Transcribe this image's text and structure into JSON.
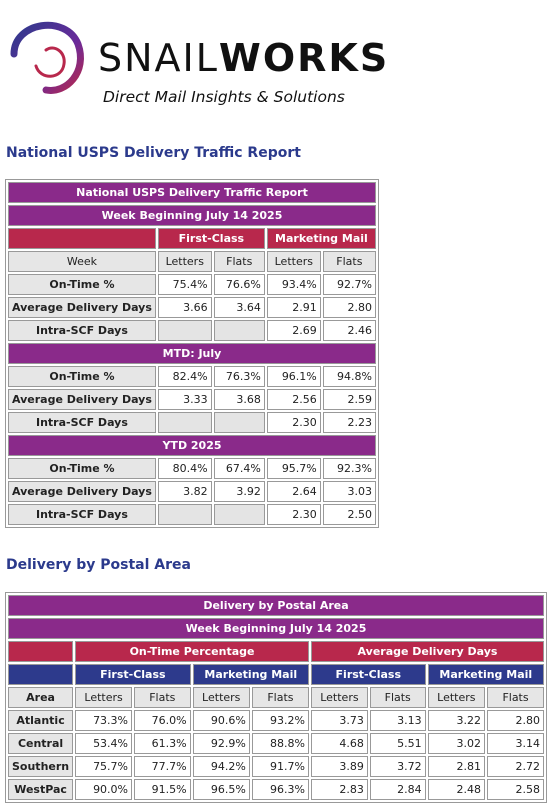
{
  "logo": {
    "brand_thin": "SNAIL",
    "brand_bold": "WORKS",
    "tagline": "Direct Mail Insights & Solutions"
  },
  "national": {
    "heading": "National USPS Delivery Traffic Report",
    "title": "National USPS Delivery Traffic Report",
    "subtitle": "Week Beginning July 14 2025",
    "groups": [
      "First-Class",
      "Marketing Mail"
    ],
    "col_week": "Week",
    "cols": [
      "Letters",
      "Flats",
      "Letters",
      "Flats"
    ],
    "sections": [
      {
        "label": "",
        "rows": [
          {
            "label": "On-Time %",
            "values": [
              "75.4%",
              "76.6%",
              "93.4%",
              "92.7%"
            ]
          },
          {
            "label": "Average Delivery Days",
            "values": [
              "3.66",
              "3.64",
              "2.91",
              "2.80"
            ]
          },
          {
            "label": "Intra-SCF Days",
            "values": [
              "",
              "",
              "2.69",
              "2.46"
            ]
          }
        ]
      },
      {
        "label": "MTD: July",
        "rows": [
          {
            "label": "On-Time %",
            "values": [
              "82.4%",
              "76.3%",
              "96.1%",
              "94.8%"
            ]
          },
          {
            "label": "Average Delivery Days",
            "values": [
              "3.33",
              "3.68",
              "2.56",
              "2.59"
            ]
          },
          {
            "label": "Intra-SCF Days",
            "values": [
              "",
              "",
              "2.30",
              "2.23"
            ]
          }
        ]
      },
      {
        "label": "YTD 2025",
        "rows": [
          {
            "label": "On-Time %",
            "values": [
              "80.4%",
              "67.4%",
              "95.7%",
              "92.3%"
            ]
          },
          {
            "label": "Average Delivery Days",
            "values": [
              "3.82",
              "3.92",
              "2.64",
              "3.03"
            ]
          },
          {
            "label": "Intra-SCF Days",
            "values": [
              "",
              "",
              "2.30",
              "2.50"
            ]
          }
        ]
      }
    ]
  },
  "postal": {
    "heading": "Delivery by Postal Area",
    "title": "Delivery by Postal Area",
    "subtitle": "Week Beginning July 14 2025",
    "metric_groups": [
      "On-Time Percentage",
      "Average Delivery Days"
    ],
    "class_groups": [
      "First-Class",
      "Marketing Mail",
      "First-Class",
      "Marketing Mail"
    ],
    "col_area": "Area",
    "cols": [
      "Letters",
      "Flats",
      "Letters",
      "Flats",
      "Letters",
      "Flats",
      "Letters",
      "Flats"
    ],
    "rows": [
      {
        "area": "Atlantic",
        "values": [
          "73.3%",
          "76.0%",
          "90.6%",
          "93.2%",
          "3.73",
          "3.13",
          "3.22",
          "2.80"
        ]
      },
      {
        "area": "Central",
        "values": [
          "53.4%",
          "61.3%",
          "92.9%",
          "88.8%",
          "4.68",
          "5.51",
          "3.02",
          "3.14"
        ]
      },
      {
        "area": "Southern",
        "values": [
          "75.7%",
          "77.7%",
          "94.2%",
          "91.7%",
          "3.89",
          "3.72",
          "2.81",
          "2.72"
        ]
      },
      {
        "area": "WestPac",
        "values": [
          "90.0%",
          "91.5%",
          "96.5%",
          "96.3%",
          "2.83",
          "2.84",
          "2.48",
          "2.58"
        ]
      }
    ]
  },
  "colors": {
    "purple": "#8a2a8a",
    "red": "#b8284c",
    "blue": "#2d3a8c",
    "heading_blue": "#2b3a8c",
    "gray": "#e6e6e6"
  }
}
